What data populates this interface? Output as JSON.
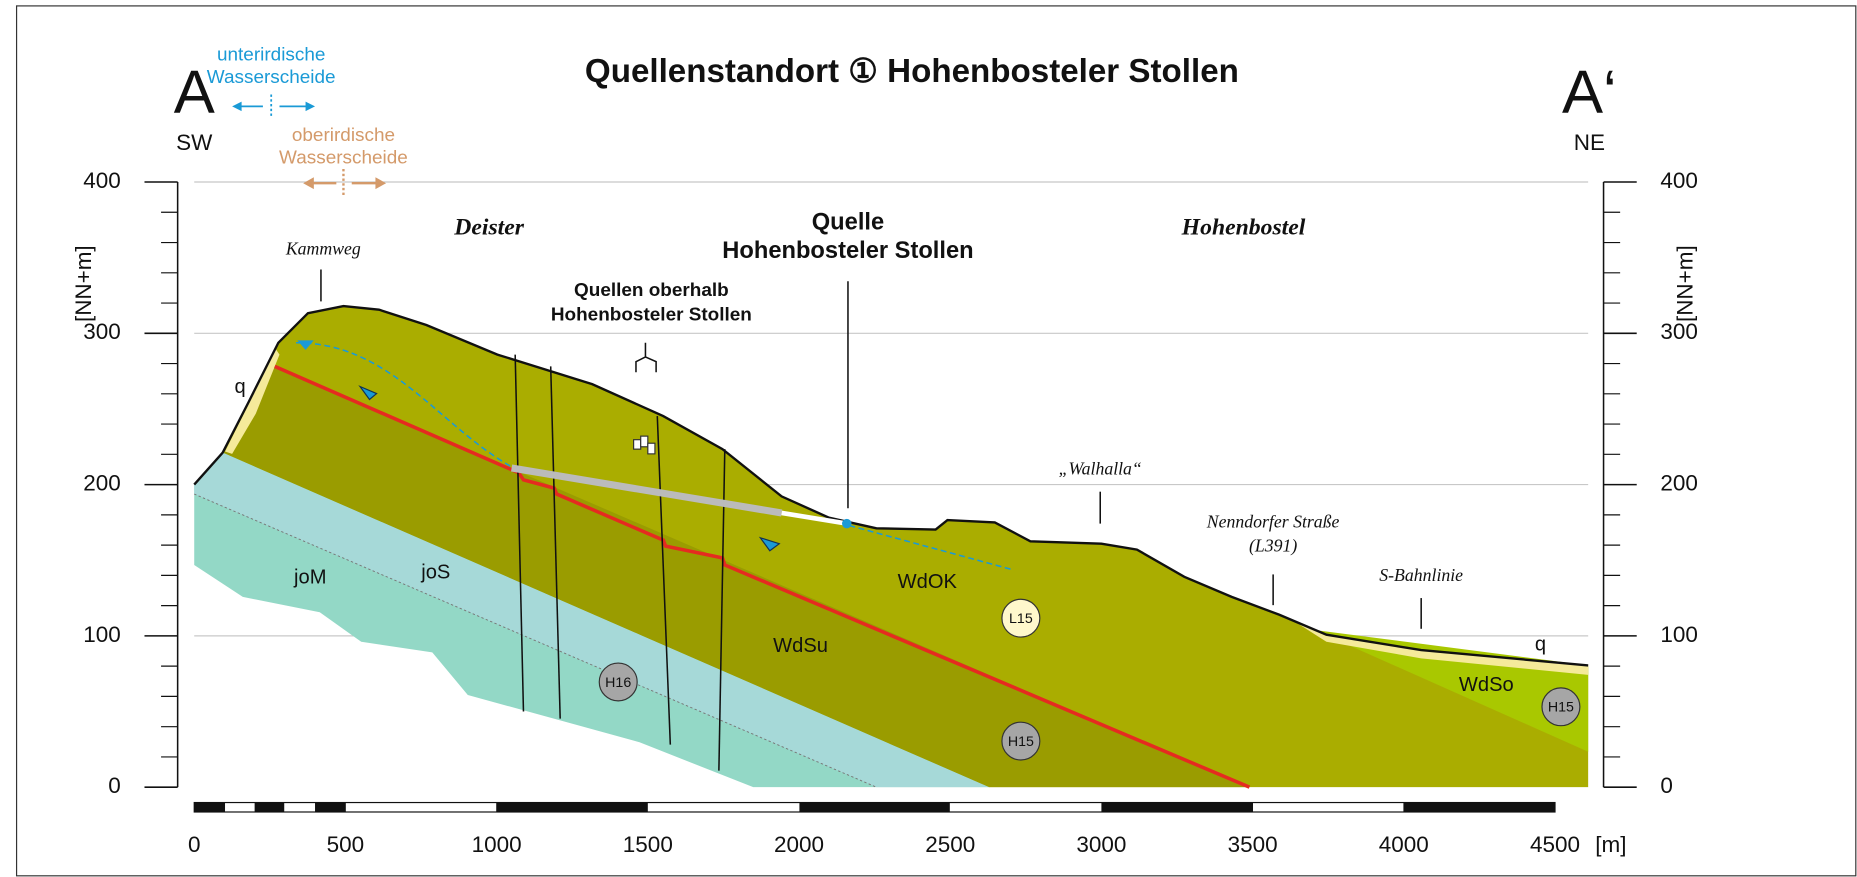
{
  "header": {
    "title": "Quellenstandort ① Hohenbosteler Stollen"
  },
  "ends": {
    "left": {
      "letter": "A",
      "direction": "SW"
    },
    "right": {
      "letter": "A‘",
      "direction": "NE"
    }
  },
  "divides": {
    "underground": [
      "unterirdische",
      "Wasserscheide"
    ],
    "surface": [
      "oberirdische",
      "Wasserscheide"
    ]
  },
  "places": {
    "deister": "Deister",
    "hohenbostel": "Hohenbostel",
    "kammweg": "Kammweg",
    "spring": [
      "Quelle",
      "Hohenbosteler Stollen"
    ],
    "springs_above": [
      "Quellen oberhalb",
      "Hohenbosteler Stollen"
    ],
    "walhalla": "„Walhalla“",
    "road": [
      "Nenndorfer Straße",
      "(L391)"
    ],
    "railway": "S-Bahnlinie"
  },
  "layers": {
    "q_left": "q",
    "q_right": "q",
    "joM": "joM",
    "joS": "joS",
    "WdSu": "WdSu",
    "WdOK": "WdOK",
    "WdSo": "WdSo"
  },
  "samples": [
    "H16",
    "H15",
    "L15",
    "H15"
  ],
  "axes": {
    "y_label": "[NN+m]",
    "x_unit": "[m]",
    "yticks": [
      0,
      100,
      200,
      300,
      400
    ],
    "xticks": [
      0,
      500,
      1000,
      1500,
      2000,
      2500,
      3000,
      3500,
      4000,
      4500
    ]
  }
}
